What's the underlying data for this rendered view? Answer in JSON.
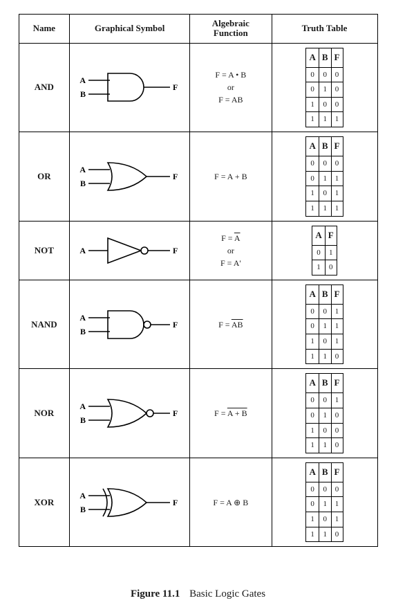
{
  "headers": {
    "name": "Name",
    "symbol": "Graphical Symbol",
    "func": "Algebraic Function",
    "truth": "Truth Table"
  },
  "caption": {
    "figref": "Figure 11.1",
    "title": "Basic Logic Gates"
  },
  "style": {
    "stroke": "#000000",
    "stroke_width": 1.6,
    "fill": "#ffffff",
    "label_font": "bold 12px Times New Roman"
  },
  "gates": [
    {
      "name": "AND",
      "type": "and",
      "inputs": [
        "A",
        "B"
      ],
      "output": "F",
      "func_lines": [
        "F = A • B",
        "or",
        "F = AB"
      ],
      "truth": {
        "cols": [
          "A",
          "B",
          "F"
        ],
        "rows": [
          [
            "0",
            "0",
            "0"
          ],
          [
            "0",
            "1",
            "0"
          ],
          [
            "1",
            "0",
            "0"
          ],
          [
            "1",
            "1",
            "1"
          ]
        ]
      }
    },
    {
      "name": "OR",
      "type": "or",
      "inputs": [
        "A",
        "B"
      ],
      "output": "F",
      "func_lines": [
        "F = A + B"
      ],
      "truth": {
        "cols": [
          "A",
          "B",
          "F"
        ],
        "rows": [
          [
            "0",
            "0",
            "0"
          ],
          [
            "0",
            "1",
            "1"
          ],
          [
            "1",
            "0",
            "1"
          ],
          [
            "1",
            "1",
            "1"
          ]
        ]
      }
    },
    {
      "name": "NOT",
      "type": "not",
      "inputs": [
        "A"
      ],
      "output": "F",
      "func_lines": [
        "F = <span class=\"overline\">A</span>",
        "or",
        "F = A'"
      ],
      "truth": {
        "cols": [
          "A",
          "F"
        ],
        "rows": [
          [
            "0",
            "1"
          ],
          [
            "1",
            "0"
          ]
        ]
      }
    },
    {
      "name": "NAND",
      "type": "nand",
      "inputs": [
        "A",
        "B"
      ],
      "output": "F",
      "func_lines": [
        "F = <span class=\"overline\">AB</span>"
      ],
      "truth": {
        "cols": [
          "A",
          "B",
          "F"
        ],
        "rows": [
          [
            "0",
            "0",
            "1"
          ],
          [
            "0",
            "1",
            "1"
          ],
          [
            "1",
            "0",
            "1"
          ],
          [
            "1",
            "1",
            "0"
          ]
        ]
      }
    },
    {
      "name": "NOR",
      "type": "nor",
      "inputs": [
        "A",
        "B"
      ],
      "output": "F",
      "func_lines": [
        "F = <span class=\"overline\">A + B</span>"
      ],
      "truth": {
        "cols": [
          "A",
          "B",
          "F"
        ],
        "rows": [
          [
            "0",
            "0",
            "1"
          ],
          [
            "0",
            "1",
            "0"
          ],
          [
            "1",
            "0",
            "0"
          ],
          [
            "1",
            "1",
            "0"
          ]
        ]
      }
    },
    {
      "name": "XOR",
      "type": "xor",
      "inputs": [
        "A",
        "B"
      ],
      "output": "F",
      "func_lines": [
        "F = A ⊕ B"
      ],
      "truth": {
        "cols": [
          "A",
          "B",
          "F"
        ],
        "rows": [
          [
            "0",
            "0",
            "0"
          ],
          [
            "0",
            "1",
            "1"
          ],
          [
            "1",
            "0",
            "1"
          ],
          [
            "1",
            "1",
            "0"
          ]
        ]
      }
    }
  ]
}
